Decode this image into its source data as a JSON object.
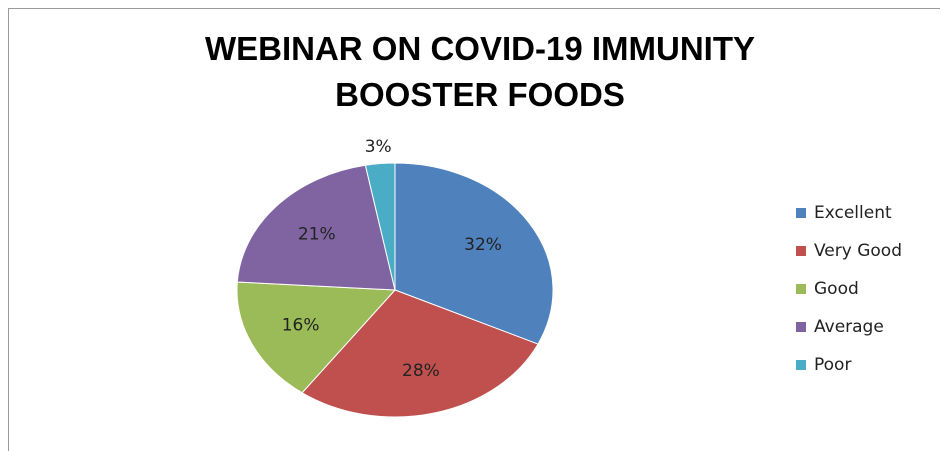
{
  "chart_data": {
    "type": "pie",
    "title": "WEBINAR ON COVID-19 IMMUNITY BOOSTER FOODS",
    "categories": [
      "Excellent",
      "Very Good",
      "Good",
      "Average",
      "Poor"
    ],
    "values": [
      32,
      28,
      16,
      21,
      3
    ],
    "value_labels": [
      "32%",
      "28%",
      "16%",
      "21%",
      "3%"
    ],
    "colors": [
      "#4f81bd",
      "#c0504d",
      "#9bbb59",
      "#8064a2",
      "#4bacc6"
    ],
    "legend": "right"
  }
}
